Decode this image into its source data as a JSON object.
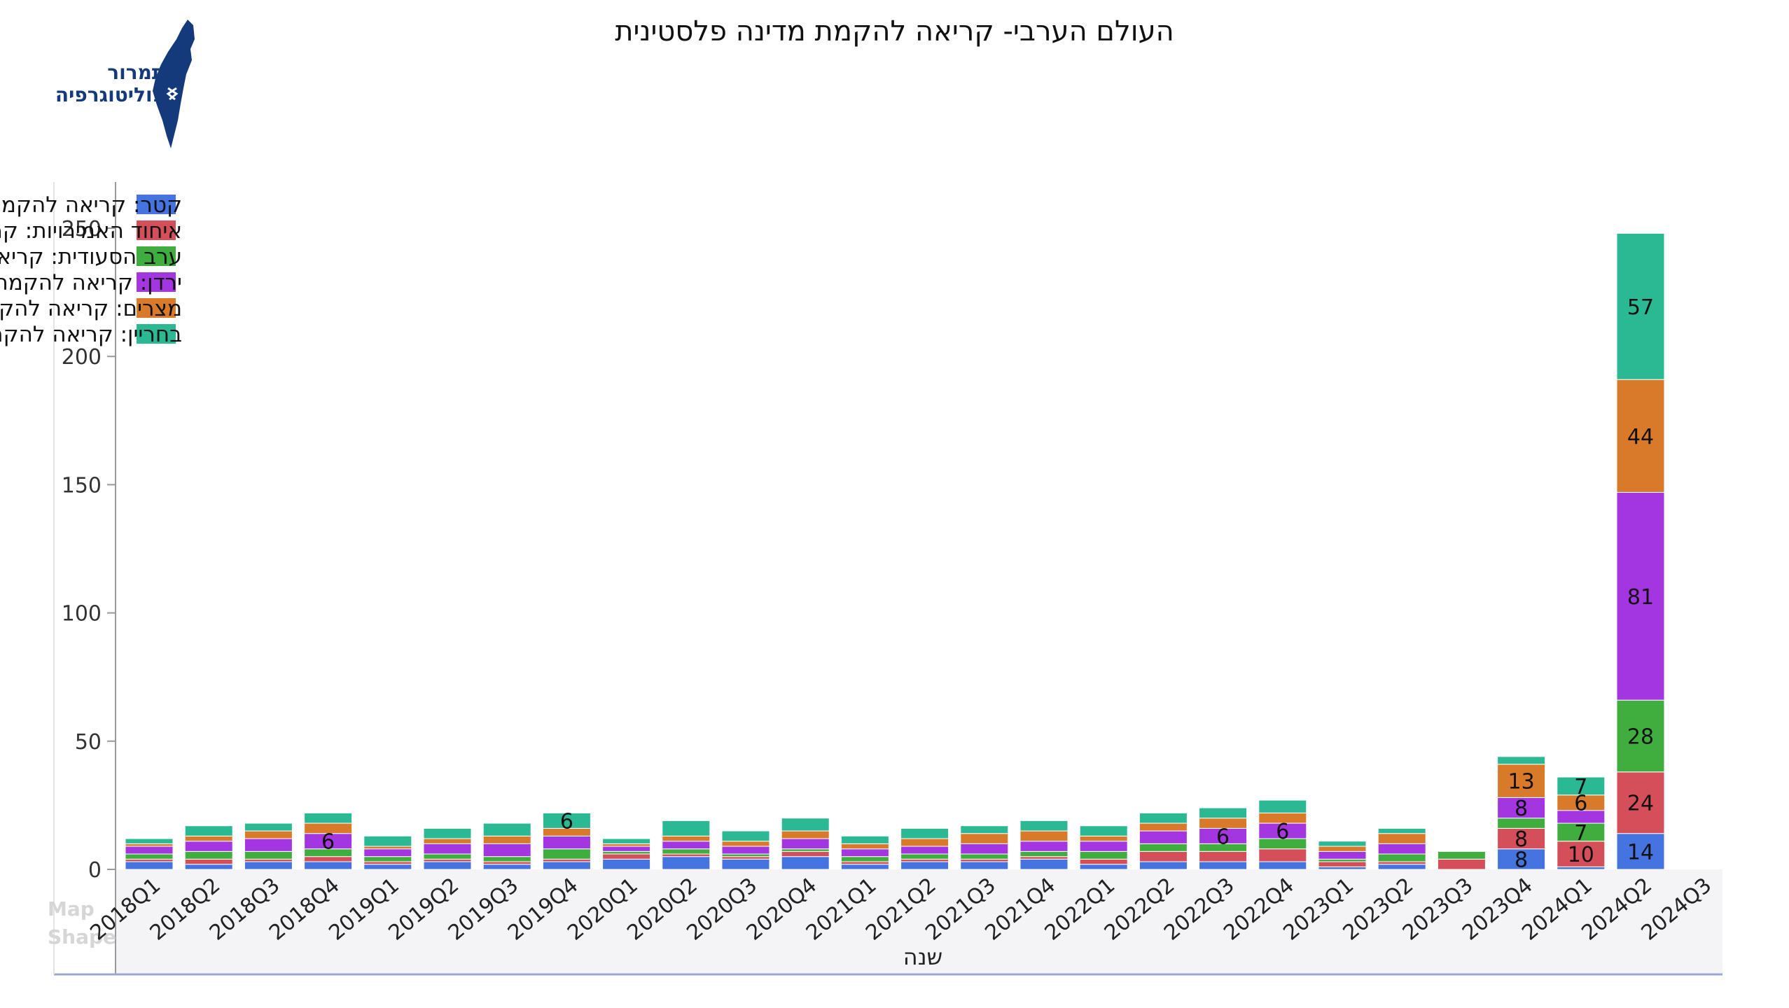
{
  "title": "העולם הערבי- קריאה להקמת מדינה פלסטינית",
  "logo": {
    "line1": "תמרור",
    "line2": "פוליטוגרפיה"
  },
  "watermark": [
    "Map",
    "Shape"
  ],
  "colors": {
    "qatar": "#4573e0",
    "uae": "#d44f5a",
    "saudi": "#3fae3f",
    "jordan": "#a336e0",
    "egypt": "#d87a2a",
    "bahrain": "#2bb993"
  },
  "chart_data": {
    "type": "bar",
    "stacked": true,
    "title": "העולם הערבי- קריאה להקמת מדינה פלסטינית",
    "xlabel": "שנה",
    "ylabel": "",
    "ylim": [
      0,
      260
    ],
    "yticks": [
      0,
      50,
      100,
      150,
      200,
      250
    ],
    "legend_position": "top-left",
    "categories": [
      "2018Q1",
      "2018Q2",
      "2018Q3",
      "2018Q4",
      "2019Q1",
      "2019Q2",
      "2019Q3",
      "2019Q4",
      "2020Q1",
      "2020Q2",
      "2020Q3",
      "2020Q4",
      "2021Q1",
      "2021Q2",
      "2021Q3",
      "2021Q4",
      "2022Q1",
      "2022Q2",
      "2022Q3",
      "2022Q4",
      "2023Q1",
      "2023Q2",
      "2023Q3",
      "2023Q4",
      "2024Q1",
      "2024Q2",
      "2024Q3"
    ],
    "series": [
      {
        "name": "קטר: קריאה להקמת מדינה פלסטינית - כללי",
        "color": "#4573e0",
        "values": [
          3,
          2,
          3,
          3,
          2,
          3,
          2,
          3,
          4,
          5,
          4,
          5,
          2,
          3,
          3,
          4,
          2,
          3,
          3,
          3,
          1,
          2,
          0,
          8,
          1,
          14,
          0
        ]
      },
      {
        "name": "איחוד האמירויות: קריאה להקמת מדינה פלסטינית - כללי",
        "color": "#d44f5a",
        "values": [
          1,
          2,
          1,
          2,
          1,
          1,
          1,
          1,
          2,
          1,
          1,
          2,
          1,
          1,
          1,
          1,
          2,
          4,
          4,
          5,
          2,
          1,
          4,
          8,
          10,
          24,
          0
        ]
      },
      {
        "name": "ערב הסעודית:  קריאה להקמת מדינה פלסטינית - כללי",
        "color": "#3fae3f",
        "values": [
          2,
          3,
          3,
          3,
          2,
          2,
          2,
          4,
          1,
          2,
          1,
          1,
          2,
          2,
          2,
          2,
          3,
          3,
          3,
          4,
          1,
          3,
          3,
          4,
          7,
          28,
          0
        ]
      },
      {
        "name": "ירדן: קריאה להקמת מדינה פלסטינית - כללי",
        "color": "#a336e0",
        "values": [
          3,
          4,
          5,
          6,
          3,
          4,
          5,
          5,
          2,
          3,
          3,
          4,
          3,
          3,
          4,
          4,
          4,
          5,
          6,
          6,
          3,
          4,
          0,
          8,
          5,
          81,
          0
        ]
      },
      {
        "name": "מצרים: קריאה להקמת מדינה פלסטינית - כללי",
        "color": "#d87a2a",
        "values": [
          1,
          2,
          3,
          4,
          1,
          2,
          3,
          3,
          1,
          2,
          2,
          3,
          2,
          3,
          4,
          4,
          2,
          3,
          4,
          4,
          2,
          4,
          0,
          13,
          6,
          44,
          0
        ]
      },
      {
        "name": "בחריין: קריאה להקמת מדינה פלסטינית - כללי",
        "color": "#2bb993",
        "values": [
          2,
          4,
          3,
          4,
          4,
          4,
          5,
          6,
          2,
          6,
          4,
          5,
          3,
          4,
          3,
          4,
          4,
          4,
          4,
          5,
          2,
          2,
          0,
          3,
          7,
          57,
          0
        ]
      }
    ],
    "data_labels": [
      {
        "category": "2018Q4",
        "series": 3,
        "text": "6"
      },
      {
        "category": "2019Q4",
        "series": 5,
        "text": "6"
      },
      {
        "category": "2022Q3",
        "series": 3,
        "text": "6"
      },
      {
        "category": "2022Q4",
        "series": 3,
        "text": "6"
      },
      {
        "category": "2023Q4",
        "series": 0,
        "text": "8"
      },
      {
        "category": "2023Q4",
        "series": 1,
        "text": "8"
      },
      {
        "category": "2023Q4",
        "series": 3,
        "text": "8"
      },
      {
        "category": "2023Q4",
        "series": 4,
        "text": "13"
      },
      {
        "category": "2024Q1",
        "series": 1,
        "text": "10"
      },
      {
        "category": "2024Q1",
        "series": 2,
        "text": "7"
      },
      {
        "category": "2024Q1",
        "series": 4,
        "text": "6"
      },
      {
        "category": "2024Q1",
        "series": 5,
        "text": "7"
      },
      {
        "category": "2024Q2",
        "series": 0,
        "text": "14"
      },
      {
        "category": "2024Q2",
        "series": 1,
        "text": "24"
      },
      {
        "category": "2024Q2",
        "series": 2,
        "text": "28"
      },
      {
        "category": "2024Q2",
        "series": 3,
        "text": "81"
      },
      {
        "category": "2024Q2",
        "series": 4,
        "text": "44"
      },
      {
        "category": "2024Q2",
        "series": 5,
        "text": "57"
      }
    ]
  }
}
